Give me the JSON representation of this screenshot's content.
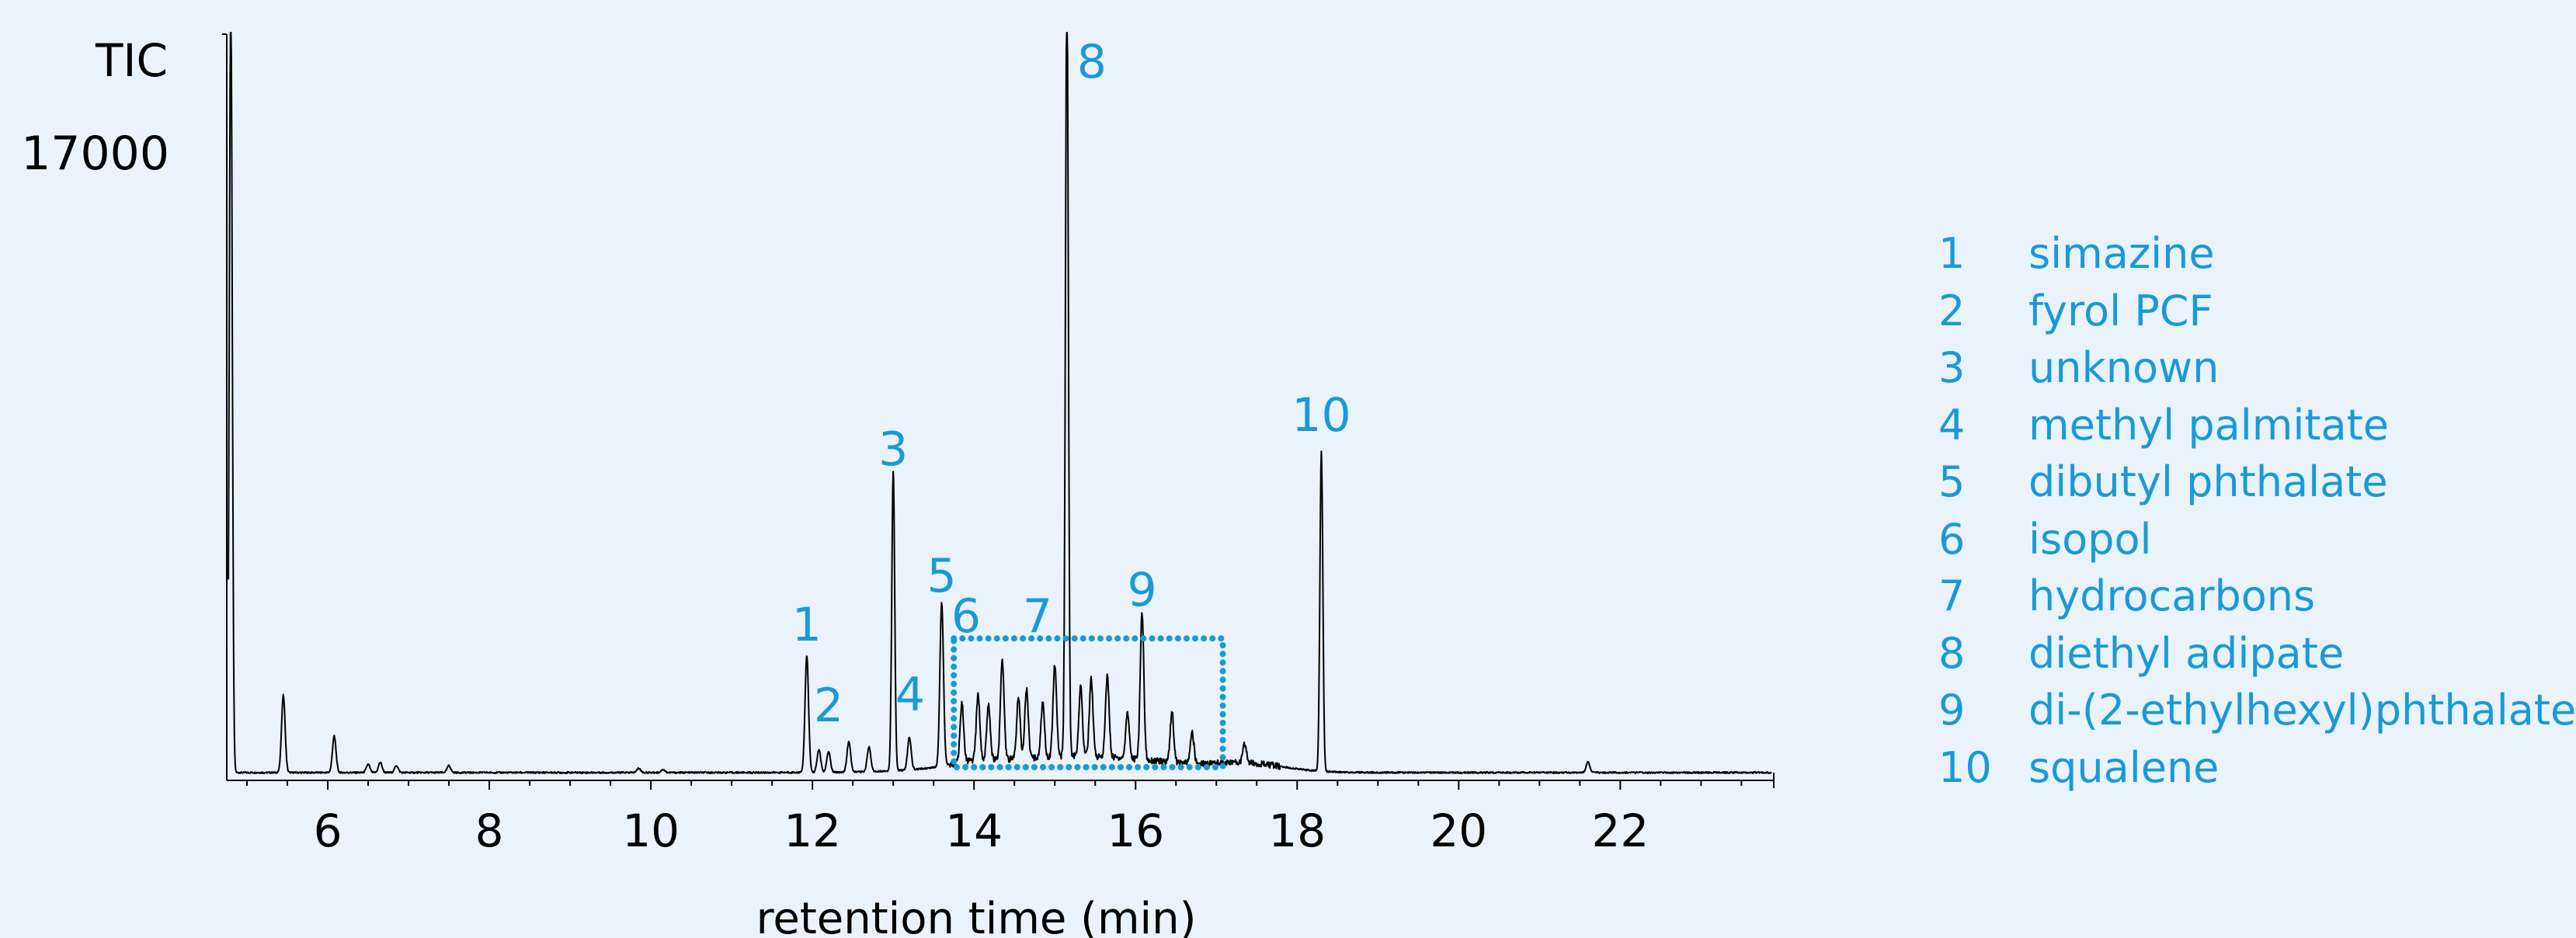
{
  "colors": {
    "background": "#eaf2fb",
    "accent": "#1a9ad6",
    "trace": "#000000"
  },
  "chart_data": {
    "type": "line",
    "ylabel": "TIC",
    "xlabel": "retention time  (min)",
    "y_tick_labels": [
      "17000"
    ],
    "x_ticks": [
      6,
      8,
      10,
      12,
      14,
      16,
      18,
      20,
      22
    ],
    "xlim": [
      4.75,
      23.9
    ],
    "ylim": [
      0,
      19000
    ],
    "grid": false,
    "legend_position": "right",
    "baseline": 120,
    "series": [
      {
        "peaks": [
          {
            "x": 4.8,
            "y": 20000
          },
          {
            "x": 5.45,
            "y": 2100
          },
          {
            "x": 6.08,
            "y": 1050
          },
          {
            "x": 6.5,
            "y": 330
          },
          {
            "x": 6.65,
            "y": 380
          },
          {
            "x": 6.85,
            "y": 300
          },
          {
            "x": 7.5,
            "y": 300
          },
          {
            "x": 9.85,
            "y": 230
          },
          {
            "x": 10.15,
            "y": 200
          },
          {
            "x": 11.93,
            "y": 3100
          },
          {
            "x": 12.08,
            "y": 700
          },
          {
            "x": 12.2,
            "y": 650
          },
          {
            "x": 12.45,
            "y": 900
          },
          {
            "x": 12.7,
            "y": 750
          },
          {
            "x": 13.0,
            "y": 7800
          },
          {
            "x": 13.2,
            "y": 950
          },
          {
            "x": 13.6,
            "y": 4300
          },
          {
            "x": 13.85,
            "y": 1600
          },
          {
            "x": 14.05,
            "y": 1800
          },
          {
            "x": 14.18,
            "y": 1500
          },
          {
            "x": 14.35,
            "y": 2700
          },
          {
            "x": 14.55,
            "y": 1700
          },
          {
            "x": 14.65,
            "y": 1900
          },
          {
            "x": 14.85,
            "y": 1500
          },
          {
            "x": 15.0,
            "y": 2500
          },
          {
            "x": 15.15,
            "y": 20000
          },
          {
            "x": 15.32,
            "y": 1900
          },
          {
            "x": 15.45,
            "y": 2100
          },
          {
            "x": 15.65,
            "y": 2200
          },
          {
            "x": 15.9,
            "y": 1300
          },
          {
            "x": 16.08,
            "y": 3900
          },
          {
            "x": 16.45,
            "y": 1400
          },
          {
            "x": 16.7,
            "y": 900
          },
          {
            "x": 17.35,
            "y": 600
          },
          {
            "x": 18.3,
            "y": 8300
          },
          {
            "x": 21.6,
            "y": 400
          }
        ]
      }
    ],
    "peak_labels": [
      {
        "label": "1",
        "x": 11.93
      },
      {
        "label": "2",
        "x": 12.1
      },
      {
        "label": "3",
        "x": 13.0
      },
      {
        "label": "4",
        "x": 13.2
      },
      {
        "label": "5",
        "x": 13.6
      },
      {
        "label": "6",
        "x": 13.9
      },
      {
        "label": "7",
        "x": 14.6
      },
      {
        "label": "8",
        "x": 15.15
      },
      {
        "label": "9",
        "x": 16.08
      },
      {
        "label": "10",
        "x": 18.3
      }
    ],
    "highlight_region": {
      "x_start": 13.75,
      "x_end": 17.08,
      "y_top": 3550
    }
  },
  "legend": {
    "items": [
      {
        "num": "1",
        "name": "simazine"
      },
      {
        "num": "2",
        "name": "fyrol PCF"
      },
      {
        "num": "3",
        "name": "unknown"
      },
      {
        "num": "4",
        "name": "methyl palmitate"
      },
      {
        "num": "5",
        "name": "dibutyl phthalate"
      },
      {
        "num": "6",
        "name": "isopol"
      },
      {
        "num": "7",
        "name": "hydrocarbons"
      },
      {
        "num": "8",
        "name": "diethyl adipate"
      },
      {
        "num": "9",
        "name": "di-(2-ethylhexyl)phthalate"
      },
      {
        "num": "10",
        "name": "squalene"
      }
    ]
  }
}
